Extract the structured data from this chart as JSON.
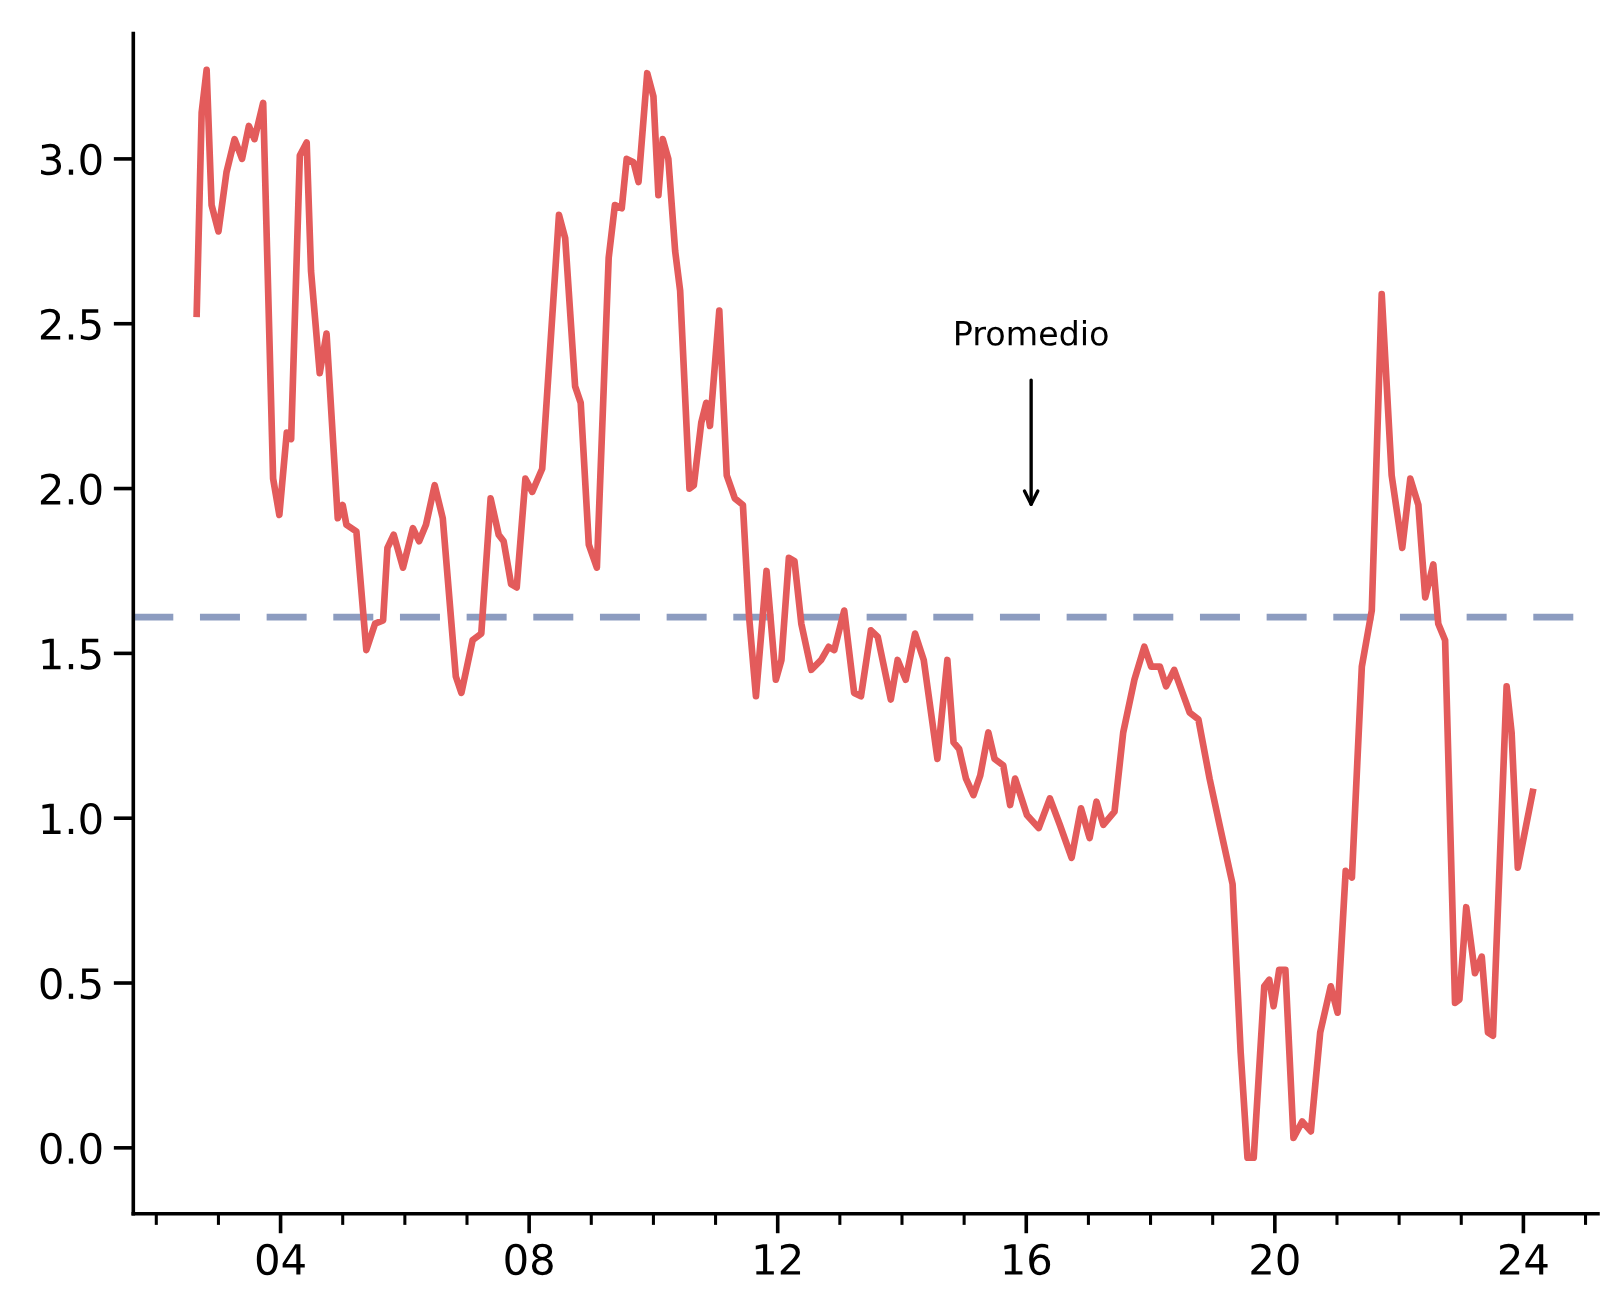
{
  "chart_data": {
    "type": "line",
    "line_style": "solid",
    "marker": "none",
    "grid": false,
    "legend": false,
    "xlim": [
      2001.63,
      2025.2
    ],
    "ylim": [
      -0.2,
      3.38
    ],
    "xticks": [
      {
        "value": 2002,
        "label": null
      },
      {
        "value": 2003,
        "label": null
      },
      {
        "value": 2004,
        "label": "04"
      },
      {
        "value": 2005,
        "label": null
      },
      {
        "value": 2006,
        "label": null
      },
      {
        "value": 2007,
        "label": null
      },
      {
        "value": 2008,
        "label": "08"
      },
      {
        "value": 2009,
        "label": null
      },
      {
        "value": 2010,
        "label": null
      },
      {
        "value": 2011,
        "label": null
      },
      {
        "value": 2012,
        "label": "12"
      },
      {
        "value": 2013,
        "label": null
      },
      {
        "value": 2014,
        "label": null
      },
      {
        "value": 2015,
        "label": null
      },
      {
        "value": 2016,
        "label": "16"
      },
      {
        "value": 2017,
        "label": null
      },
      {
        "value": 2018,
        "label": null
      },
      {
        "value": 2019,
        "label": null
      },
      {
        "value": 2020,
        "label": "20"
      },
      {
        "value": 2021,
        "label": null
      },
      {
        "value": 2022,
        "label": null
      },
      {
        "value": 2023,
        "label": null
      },
      {
        "value": 2024,
        "label": "24"
      },
      {
        "value": 2025,
        "label": null
      }
    ],
    "yticks": [
      {
        "value": 0,
        "label": "0.0"
      },
      {
        "value": 0.5,
        "label": "0.5"
      },
      {
        "value": 1,
        "label": "1.0"
      },
      {
        "value": 1.5,
        "label": "1.5"
      },
      {
        "value": 2,
        "label": "2.0"
      },
      {
        "value": 2.5,
        "label": "2.5"
      },
      {
        "value": 3,
        "label": "3.0"
      }
    ],
    "ref_lines": [
      {
        "axis": "y",
        "value": 1.61,
        "color": "#8c9cc0",
        "line_style": "dashed"
      }
    ],
    "annotations": [
      "Promedio"
    ],
    "series": [
      {
        "color": "#e35b5b",
        "x": [
          2002.65,
          2002.73,
          2002.81,
          2002.89,
          2003.0,
          2003.13,
          2003.26,
          2003.38,
          2003.49,
          2003.58,
          2003.72,
          2003.88,
          2003.98,
          2004.1,
          2004.17,
          2004.31,
          2004.42,
          2004.49,
          2004.63,
          2004.74,
          2004.92,
          2005.0,
          2005.06,
          2005.22,
          2005.38,
          2005.52,
          2005.65,
          2005.72,
          2005.82,
          2005.97,
          2006.13,
          2006.23,
          2006.34,
          2006.48,
          2006.61,
          2006.82,
          2006.91,
          2007.09,
          2007.23,
          2007.38,
          2007.51,
          2007.59,
          2007.71,
          2007.8,
          2007.94,
          2008.05,
          2008.21,
          2008.48,
          2008.58,
          2008.74,
          2008.83,
          2008.96,
          2009.09,
          2009.28,
          2009.38,
          2009.49,
          2009.57,
          2009.68,
          2009.76,
          2009.9,
          2010.0,
          2010.08,
          2010.15,
          2010.24,
          2010.35,
          2010.43,
          2010.58,
          2010.65,
          2010.77,
          2010.85,
          2010.91,
          2011.06,
          2011.18,
          2011.31,
          2011.44,
          2011.54,
          2011.65,
          2011.82,
          2011.97,
          2012.06,
          2012.18,
          2012.27,
          2012.38,
          2012.54,
          2012.7,
          2012.82,
          2012.91,
          2013.07,
          2013.23,
          2013.34,
          2013.5,
          2013.61,
          2013.82,
          2013.93,
          2014.06,
          2014.21,
          2014.35,
          2014.57,
          2014.73,
          2014.83,
          2014.92,
          2015.03,
          2015.15,
          2015.26,
          2015.39,
          2015.49,
          2015.63,
          2015.74,
          2015.82,
          2016.01,
          2016.2,
          2016.38,
          2016.54,
          2016.73,
          2016.88,
          2017.02,
          2017.13,
          2017.24,
          2017.42,
          2017.56,
          2017.74,
          2017.9,
          2018.01,
          2018.15,
          2018.25,
          2018.38,
          2018.63,
          2018.77,
          2018.95,
          2019.11,
          2019.32,
          2019.45,
          2019.56,
          2019.66,
          2019.83,
          2019.91,
          2019.98,
          2020.07,
          2020.17,
          2020.3,
          2020.44,
          2020.58,
          2020.73,
          2020.9,
          2021.01,
          2021.14,
          2021.24,
          2021.4,
          2021.56,
          2021.72,
          2021.88,
          2022.05,
          2022.18,
          2022.31,
          2022.42,
          2022.55,
          2022.63,
          2022.74,
          2022.9,
          2022.97,
          2023.08,
          2023.22,
          2023.33,
          2023.43,
          2023.51,
          2023.73,
          2023.81,
          2023.91,
          2024.15
        ],
        "values": [
          2.53,
          3.14,
          3.27,
          2.86,
          2.78,
          2.96,
          3.06,
          3.0,
          3.1,
          3.06,
          3.17,
          2.03,
          1.92,
          2.17,
          2.15,
          3.01,
          3.05,
          2.66,
          2.35,
          2.47,
          1.91,
          1.95,
          1.89,
          1.87,
          1.51,
          1.59,
          1.6,
          1.82,
          1.86,
          1.76,
          1.88,
          1.84,
          1.89,
          2.01,
          1.91,
          1.43,
          1.38,
          1.54,
          1.56,
          1.97,
          1.86,
          1.84,
          1.71,
          1.7,
          2.03,
          1.99,
          2.06,
          2.83,
          2.76,
          2.31,
          2.26,
          1.83,
          1.76,
          2.7,
          2.86,
          2.85,
          3.0,
          2.99,
          2.93,
          3.26,
          3.19,
          2.89,
          3.06,
          3.0,
          2.72,
          2.6,
          2.0,
          2.01,
          2.2,
          2.26,
          2.19,
          2.54,
          2.04,
          1.97,
          1.95,
          1.61,
          1.37,
          1.75,
          1.42,
          1.48,
          1.79,
          1.78,
          1.59,
          1.45,
          1.48,
          1.52,
          1.51,
          1.63,
          1.38,
          1.37,
          1.57,
          1.55,
          1.36,
          1.48,
          1.42,
          1.56,
          1.48,
          1.18,
          1.48,
          1.23,
          1.21,
          1.12,
          1.07,
          1.13,
          1.26,
          1.18,
          1.16,
          1.04,
          1.12,
          1.01,
          0.97,
          1.06,
          0.98,
          0.88,
          1.03,
          0.94,
          1.05,
          0.98,
          1.02,
          1.26,
          1.42,
          1.52,
          1.46,
          1.46,
          1.4,
          1.45,
          1.32,
          1.3,
          1.12,
          0.98,
          0.8,
          0.29,
          -0.03,
          -0.03,
          0.49,
          0.51,
          0.43,
          0.54,
          0.54,
          0.03,
          0.08,
          0.05,
          0.35,
          0.49,
          0.41,
          0.84,
          0.82,
          1.46,
          1.63,
          2.59,
          2.04,
          1.82,
          2.03,
          1.95,
          1.67,
          1.77,
          1.59,
          1.54,
          0.44,
          0.45,
          0.73,
          0.53,
          0.58,
          0.35,
          0.34,
          1.4,
          1.26,
          0.85,
          1.08
        ]
      }
    ]
  }
}
